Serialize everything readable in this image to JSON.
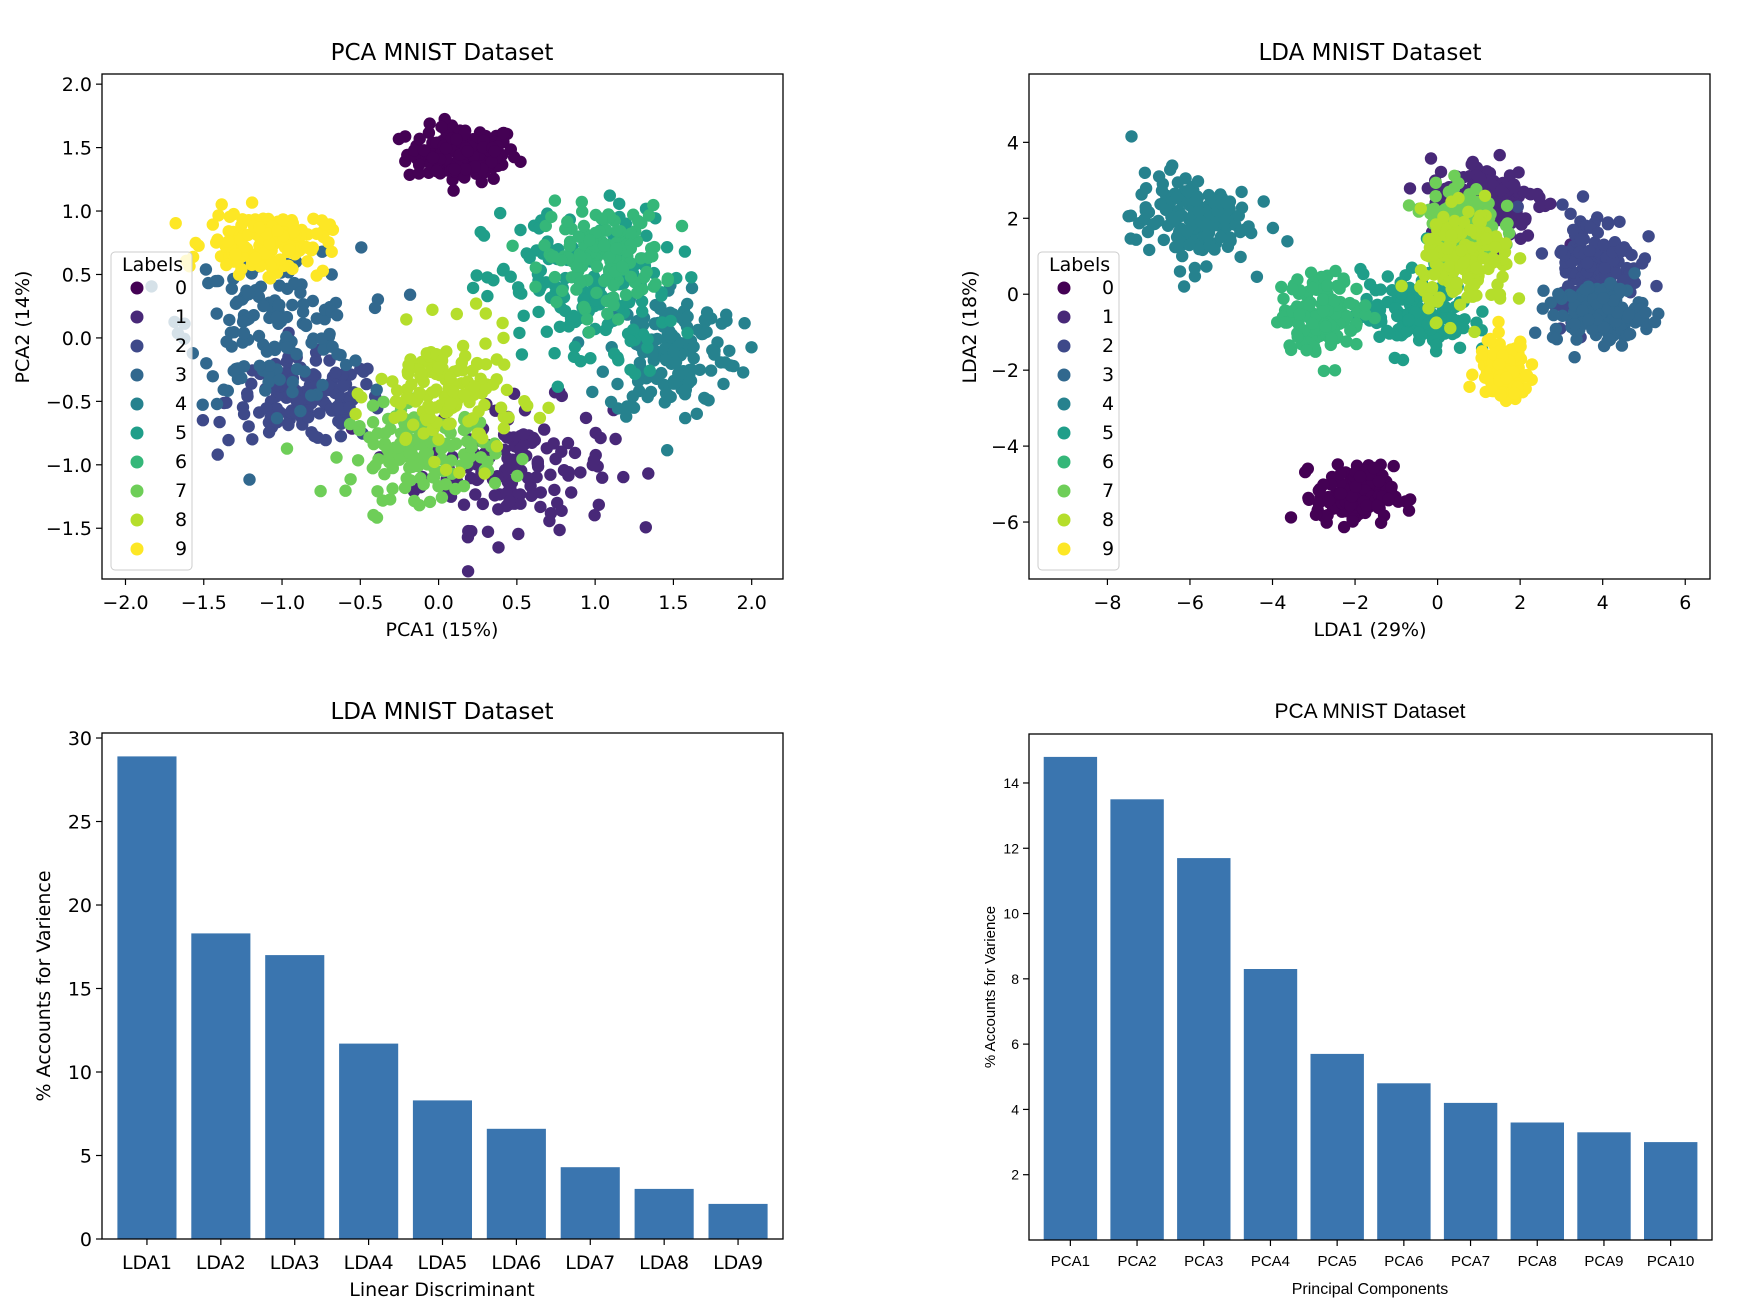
{
  "chart_data": [
    {
      "type": "scatter",
      "title": "PCA MNIST Dataset",
      "xlabel": "PCA1 (15%)",
      "ylabel": "PCA2 (14%)",
      "xlim": [
        -2.15,
        2.2
      ],
      "ylim": [
        -1.9,
        2.08
      ],
      "xticks": [
        "−2.0",
        "−1.5",
        "−1.0",
        "−0.5",
        "0.0",
        "0.5",
        "1.0",
        "1.5",
        "2.0"
      ],
      "xtick_values": [
        -2.0,
        -1.5,
        -1.0,
        -0.5,
        0.0,
        0.5,
        1.0,
        1.5,
        2.0
      ],
      "yticks": [
        "2.0",
        "1.5",
        "1.0",
        "0.5",
        "0.0",
        "−0.5",
        "−1.0",
        "−1.5"
      ],
      "ytick_values": [
        2.0,
        1.5,
        1.0,
        0.5,
        0.0,
        -0.5,
        -1.0,
        -1.5
      ],
      "legend": {
        "title": "Labels",
        "entries": [
          "0",
          "1",
          "2",
          "3",
          "4",
          "5",
          "6",
          "7",
          "8",
          "9"
        ],
        "placement": "center-left"
      },
      "clusters": [
        {
          "label": "0",
          "color": "#440154",
          "center": [
            0.15,
            1.45
          ],
          "spread": [
            0.32,
            0.2
          ],
          "count": 150
        },
        {
          "label": "1",
          "color": "#482878",
          "center": [
            0.5,
            -1.0
          ],
          "spread": [
            0.55,
            0.45
          ],
          "count": 150
        },
        {
          "label": "2",
          "color": "#3e4989",
          "center": [
            -0.85,
            -0.5
          ],
          "spread": [
            0.45,
            0.3
          ],
          "count": 150
        },
        {
          "label": "3",
          "color": "#31688e",
          "center": [
            -1.05,
            0.1
          ],
          "spread": [
            0.5,
            0.55
          ],
          "count": 150
        },
        {
          "label": "4",
          "color": "#26828e",
          "center": [
            1.5,
            -0.1
          ],
          "spread": [
            0.38,
            0.5
          ],
          "count": 150
        },
        {
          "label": "5",
          "color": "#1f9e89",
          "center": [
            0.9,
            0.35
          ],
          "spread": [
            0.55,
            0.6
          ],
          "count": 150
        },
        {
          "label": "6",
          "color": "#35b779",
          "center": [
            1.05,
            0.65
          ],
          "spread": [
            0.35,
            0.35
          ],
          "count": 150
        },
        {
          "label": "7",
          "color": "#6ece58",
          "center": [
            -0.1,
            -0.9
          ],
          "spread": [
            0.42,
            0.32
          ],
          "count": 150
        },
        {
          "label": "8",
          "color": "#b5de2b",
          "center": [
            0.05,
            -0.45
          ],
          "spread": [
            0.4,
            0.45
          ],
          "count": 150
        },
        {
          "label": "9",
          "color": "#fde725",
          "center": [
            -1.1,
            0.75
          ],
          "spread": [
            0.35,
            0.22
          ],
          "count": 150
        }
      ]
    },
    {
      "type": "scatter",
      "title": "LDA MNIST Dataset",
      "xlabel": "LDA1 (29%)",
      "ylabel": "LDA2 (18%)",
      "xlim": [
        -9.9,
        6.6
      ],
      "ylim": [
        -7.5,
        5.8
      ],
      "xticks": [
        "−8",
        "−6",
        "−4",
        "−2",
        "0",
        "2",
        "4",
        "6"
      ],
      "xtick_values": [
        -8,
        -6,
        -4,
        -2,
        0,
        2,
        4,
        6
      ],
      "yticks": [
        "4",
        "2",
        "0",
        "−2",
        "−4",
        "−6"
      ],
      "ytick_values": [
        4,
        2,
        0,
        -2,
        -4,
        -6
      ],
      "legend": {
        "title": "Labels",
        "entries": [
          "0",
          "1",
          "2",
          "3",
          "4",
          "5",
          "6",
          "7",
          "8",
          "9"
        ],
        "placement": "center-left"
      },
      "clusters": [
        {
          "label": "0",
          "color": "#440154",
          "center": [
            -2.0,
            -5.3
          ],
          "spread": [
            0.85,
            0.7
          ],
          "count": 150
        },
        {
          "label": "1",
          "color": "#482878",
          "center": [
            1.2,
            2.5
          ],
          "spread": [
            1.3,
            1.0
          ],
          "count": 150
        },
        {
          "label": "2",
          "color": "#3e4989",
          "center": [
            3.8,
            0.8
          ],
          "spread": [
            1.0,
            1.3
          ],
          "count": 150
        },
        {
          "label": "3",
          "color": "#31688e",
          "center": [
            3.9,
            -0.5
          ],
          "spread": [
            1.0,
            0.7
          ],
          "count": 150
        },
        {
          "label": "4",
          "color": "#26828e",
          "center": [
            -6.0,
            2.0
          ],
          "spread": [
            1.3,
            1.1
          ],
          "count": 150
        },
        {
          "label": "5",
          "color": "#1f9e89",
          "center": [
            -0.5,
            -0.5
          ],
          "spread": [
            1.2,
            1.0
          ],
          "count": 150
        },
        {
          "label": "6",
          "color": "#35b779",
          "center": [
            -2.8,
            -0.5
          ],
          "spread": [
            0.9,
            0.9
          ],
          "count": 150
        },
        {
          "label": "7",
          "color": "#6ece58",
          "center": [
            0.6,
            1.9
          ],
          "spread": [
            0.8,
            0.9
          ],
          "count": 150
        },
        {
          "label": "8",
          "color": "#b5de2b",
          "center": [
            0.7,
            0.8
          ],
          "spread": [
            1.0,
            1.2
          ],
          "count": 150
        },
        {
          "label": "9",
          "color": "#fde725",
          "center": [
            1.6,
            -2.0
          ],
          "spread": [
            0.55,
            0.7
          ],
          "count": 150
        }
      ]
    },
    {
      "type": "bar",
      "title": "LDA MNIST Dataset",
      "xlabel": "Linear Discriminant",
      "ylabel": "% Accounts for Varience",
      "categories": [
        "LDA1",
        "LDA2",
        "LDA3",
        "LDA4",
        "LDA5",
        "LDA6",
        "LDA7",
        "LDA8",
        "LDA9"
      ],
      "values": [
        28.9,
        18.3,
        17.0,
        11.7,
        8.3,
        6.6,
        4.3,
        3.0,
        2.1
      ],
      "ylim": [
        0,
        30.3
      ],
      "yticks": [
        "0",
        "5",
        "10",
        "15",
        "20",
        "25",
        "30"
      ],
      "ytick_values": [
        0,
        5,
        10,
        15,
        20,
        25,
        30
      ],
      "color": "#3a75af"
    },
    {
      "type": "bar",
      "title": "PCA MNIST Dataset",
      "xlabel": "Principal Components",
      "ylabel": "% Accounts for Varience",
      "categories": [
        "PCA1",
        "PCA2",
        "PCA3",
        "PCA4",
        "PCA5",
        "PCA6",
        "PCA7",
        "PCA8",
        "PCA9",
        "PCA10"
      ],
      "values": [
        14.8,
        13.5,
        11.7,
        8.3,
        5.7,
        4.8,
        4.2,
        3.6,
        3.3,
        3.0
      ],
      "ylim": [
        0,
        15.5
      ],
      "yticks": [
        "2",
        "4",
        "6",
        "8",
        "10",
        "12",
        "14"
      ],
      "ytick_values": [
        2,
        4,
        6,
        8,
        10,
        12,
        14
      ],
      "color": "#3a75af"
    }
  ]
}
